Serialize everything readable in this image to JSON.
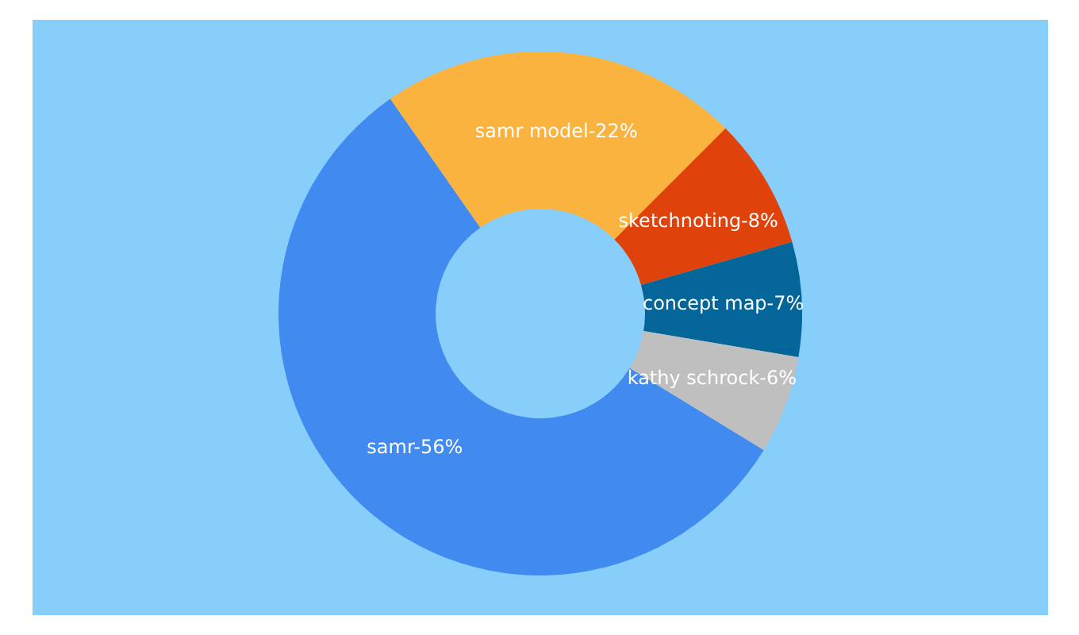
{
  "chart_data": {
    "type": "donut",
    "categories": [
      "samr",
      "samr model",
      "sketchnoting",
      "concept map",
      "kathy schrock"
    ],
    "values": [
      56,
      22,
      8,
      7,
      6
    ],
    "colors": [
      "#418af0",
      "#fbb33f",
      "#e0420b",
      "#036598",
      "#bfbfbf"
    ],
    "value_labels": [
      "56%",
      "22%",
      "8%",
      "7%",
      "6%"
    ]
  }
}
